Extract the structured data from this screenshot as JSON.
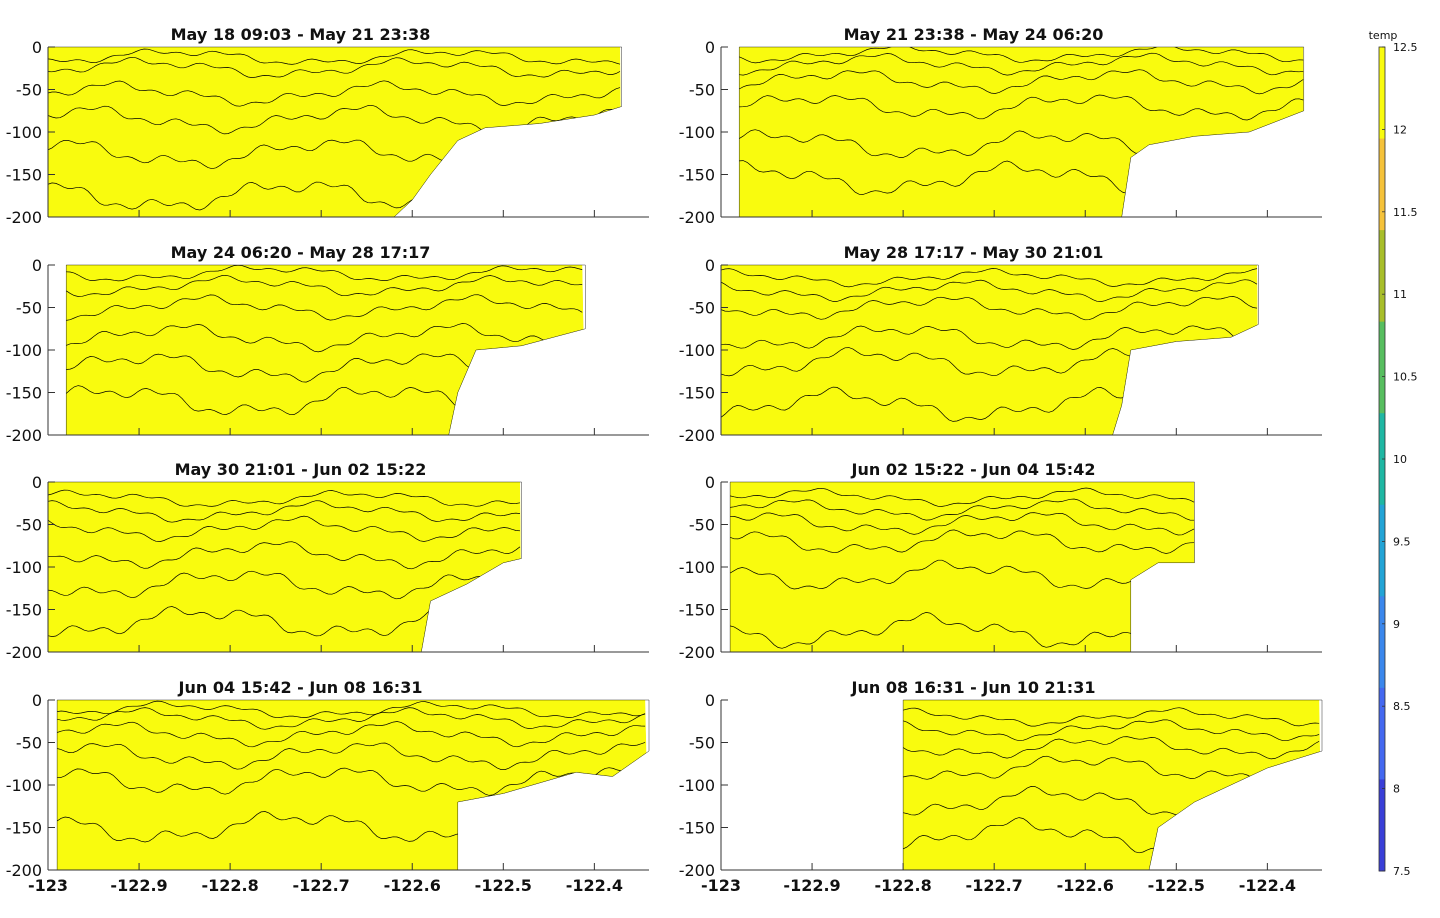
{
  "chart_data": {
    "type": "heatmap",
    "description_kind": "filled contour sections of temperature (depth vs longitude)",
    "xlim": [
      -123.0,
      -122.34
    ],
    "ylim": [
      -200,
      0
    ],
    "xticks": [
      -123,
      -122.9,
      -122.8,
      -122.7,
      -122.6,
      -122.5,
      -122.4
    ],
    "xtick_labels": [
      "-123",
      "-122.9",
      "-122.8",
      "-122.7",
      "-122.6",
      "-122.5",
      "-122.4"
    ],
    "yticks": [
      0,
      -50,
      -100,
      -150,
      -200
    ],
    "ytick_labels": [
      "0",
      "-50",
      "-100",
      "-150",
      "-200"
    ],
    "colorbar": {
      "label": "temp",
      "range": [
        7.5,
        12.5
      ],
      "ticks": [
        7.5,
        8,
        8.5,
        9,
        9.5,
        10,
        10.5,
        11,
        11.5,
        12,
        12.5
      ],
      "tick_labels": [
        "7.5",
        "8",
        "8.5",
        "9",
        "9.5",
        "10",
        "10.5",
        "11",
        "11.5",
        "12",
        "12.5"
      ]
    },
    "contour_levels": [
      12,
      11.5,
      11,
      10.5,
      10,
      9.5,
      9,
      8.5,
      8
    ],
    "panels": [
      {
        "title": "May 18 09:03 - May 21 23:38",
        "x_start": -123.0,
        "x_end": -122.37,
        "profile_depths": [
          0,
          12,
          25,
          55,
          85,
          125,
          175,
          205
        ],
        "bottom": [
          [
            -123.0,
            -200
          ],
          [
            -122.62,
            -200
          ],
          [
            -122.6,
            -180
          ],
          [
            -122.58,
            -150
          ],
          [
            -122.55,
            -110
          ],
          [
            -122.52,
            -95
          ],
          [
            -122.46,
            -90
          ],
          [
            -122.4,
            -80
          ],
          [
            -122.37,
            -70
          ]
        ]
      },
      {
        "title": "May 21 23:38 - May 24 06:20",
        "x_start": -122.98,
        "x_end": -122.36,
        "profile_depths": [
          0,
          8,
          20,
          40,
          70,
          115,
          155,
          205
        ],
        "bottom": [
          [
            -122.98,
            -200
          ],
          [
            -122.56,
            -200
          ],
          [
            -122.55,
            -130
          ],
          [
            -122.53,
            -115
          ],
          [
            -122.48,
            -105
          ],
          [
            -122.42,
            -100
          ],
          [
            -122.36,
            -75
          ]
        ]
      },
      {
        "title": "May 24 06:20 - May 28 17:17",
        "x_start": -122.98,
        "x_end": -122.41,
        "profile_depths": [
          0,
          10,
          25,
          50,
          85,
          120,
          160,
          205
        ],
        "bottom": [
          [
            -122.98,
            -200
          ],
          [
            -122.56,
            -200
          ],
          [
            -122.55,
            -150
          ],
          [
            -122.53,
            -100
          ],
          [
            -122.48,
            -95
          ],
          [
            -122.41,
            -75
          ]
        ]
      },
      {
        "title": "May 28 17:17 - May 30 21:01",
        "x_start": -123.0,
        "x_end": -122.41,
        "profile_depths": [
          0,
          15,
          30,
          50,
          85,
          115,
          165,
          205
        ],
        "bottom": [
          [
            -123.0,
            -200
          ],
          [
            -122.57,
            -200
          ],
          [
            -122.56,
            -165
          ],
          [
            -122.55,
            -100
          ],
          [
            -122.5,
            -90
          ],
          [
            -122.44,
            -85
          ],
          [
            -122.41,
            -70
          ]
        ]
      },
      {
        "title": "May 30 21:01 - Jun 02 15:22",
        "x_start": -123.0,
        "x_end": -122.48,
        "profile_depths": [
          0,
          20,
          35,
          55,
          85,
          120,
          165,
          205
        ],
        "bottom": [
          [
            -123.0,
            -200
          ],
          [
            -122.59,
            -200
          ],
          [
            -122.58,
            -140
          ],
          [
            -122.54,
            -120
          ],
          [
            -122.5,
            -95
          ],
          [
            -122.48,
            -90
          ]
        ]
      },
      {
        "title": "Jun 02 15:22 - Jun 04 15:42",
        "x_start": -122.99,
        "x_end": -122.48,
        "profile_depths": [
          0,
          18,
          32,
          48,
          70,
          110,
          175,
          205
        ],
        "bottom": [
          [
            -122.99,
            -200
          ],
          [
            -122.55,
            -200
          ],
          [
            -122.55,
            -115
          ],
          [
            -122.52,
            -95
          ],
          [
            -122.48,
            -95
          ]
        ]
      },
      {
        "title": "Jun 04 15:42 - Jun 08 16:31",
        "x_start": -122.99,
        "x_end": -122.34,
        "profile_depths": [
          0,
          12,
          22,
          40,
          65,
          95,
          150,
          205
        ],
        "bottom": [
          [
            -122.99,
            -200
          ],
          [
            -122.55,
            -200
          ],
          [
            -122.55,
            -120
          ],
          [
            -122.5,
            -110
          ],
          [
            -122.42,
            -85
          ],
          [
            -122.38,
            -90
          ],
          [
            -122.34,
            -60
          ]
        ]
      },
      {
        "title": "Jun 08 16:31 - Jun 10 21:31",
        "x_start": -122.8,
        "x_end": -122.34,
        "profile_depths": [
          0,
          20,
          35,
          55,
          80,
          120,
          160,
          205
        ],
        "bottom": [
          [
            -122.8,
            -200
          ],
          [
            -122.53,
            -200
          ],
          [
            -122.52,
            -150
          ],
          [
            -122.48,
            -120
          ],
          [
            -122.44,
            -100
          ],
          [
            -122.4,
            -80
          ],
          [
            -122.34,
            -60
          ]
        ]
      }
    ]
  },
  "colors": {
    "levels": [
      "#f9fb0e",
      "#f5c23a",
      "#a8be2a",
      "#57be5f",
      "#1fb7a3",
      "#23a4d6",
      "#3b87ec",
      "#4468f0",
      "#3a3fd8"
    ],
    "contour_line": "#000000",
    "axis": "#333333"
  }
}
